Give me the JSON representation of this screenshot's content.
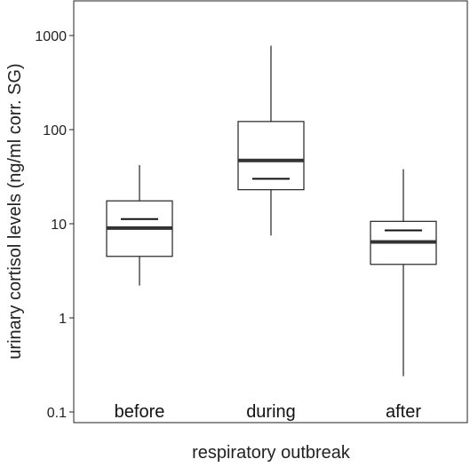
{
  "chart_data": {
    "type": "box",
    "xlabel": "respiratory outbreak",
    "ylabel": "urinary cortisol levels (ng/ml corr. SG)",
    "yscale": "log",
    "ylim": [
      0.1,
      2500
    ],
    "yticks": [
      {
        "value": 0.1,
        "label": "0.1"
      },
      {
        "value": 1,
        "label": "1"
      },
      {
        "value": 10,
        "label": "10"
      },
      {
        "value": 100,
        "label": "100"
      },
      {
        "value": 1000,
        "label": "1000"
      }
    ],
    "categories": [
      "before",
      "during",
      "after"
    ],
    "boxes": [
      {
        "category": "before",
        "whisker_low": 2.2,
        "q1": 4.5,
        "median": 9.0,
        "q3": 17.5,
        "whisker_high": 42,
        "mean": 11.2
      },
      {
        "category": "during",
        "whisker_low": 7.5,
        "q1": 23,
        "median": 47,
        "q3": 122,
        "whisker_high": 780,
        "mean": 30
      },
      {
        "category": "after",
        "whisker_low": 0.24,
        "q1": 3.7,
        "median": 6.4,
        "q3": 10.6,
        "whisker_high": 38,
        "mean": 8.5
      }
    ],
    "grid": false
  }
}
